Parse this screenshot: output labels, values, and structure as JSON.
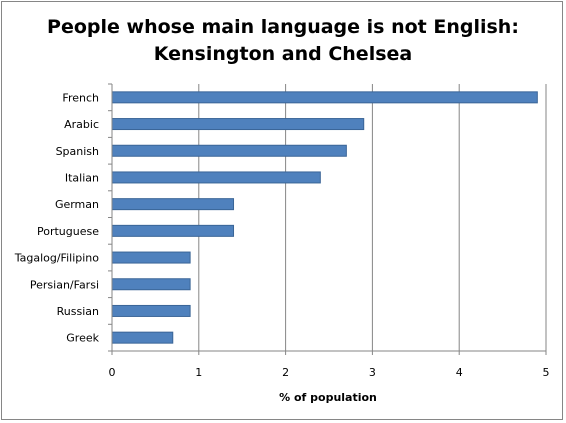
{
  "chart_data": {
    "type": "bar",
    "orientation": "horizontal",
    "title_line1": "People whose main language is not English:",
    "title_line2": "Kensington and Chelsea",
    "categories": [
      "French",
      "Arabic",
      "Spanish",
      "Italian",
      "German",
      "Portuguese",
      "Tagalog/Filipino",
      "Persian/Farsi",
      "Russian",
      "Greek"
    ],
    "values": [
      4.9,
      2.9,
      2.7,
      2.4,
      1.4,
      1.4,
      0.9,
      0.9,
      0.9,
      0.7
    ],
    "xlabel": "% of population",
    "ylabel": "",
    "xlim": [
      0,
      5
    ],
    "xticks": [
      "0",
      "1",
      "2",
      "3",
      "4",
      "5"
    ],
    "grid": "vertical major gridlines",
    "legend": "none",
    "bar_color": "#4F81BD",
    "bar_border_color": "#3A6597"
  }
}
